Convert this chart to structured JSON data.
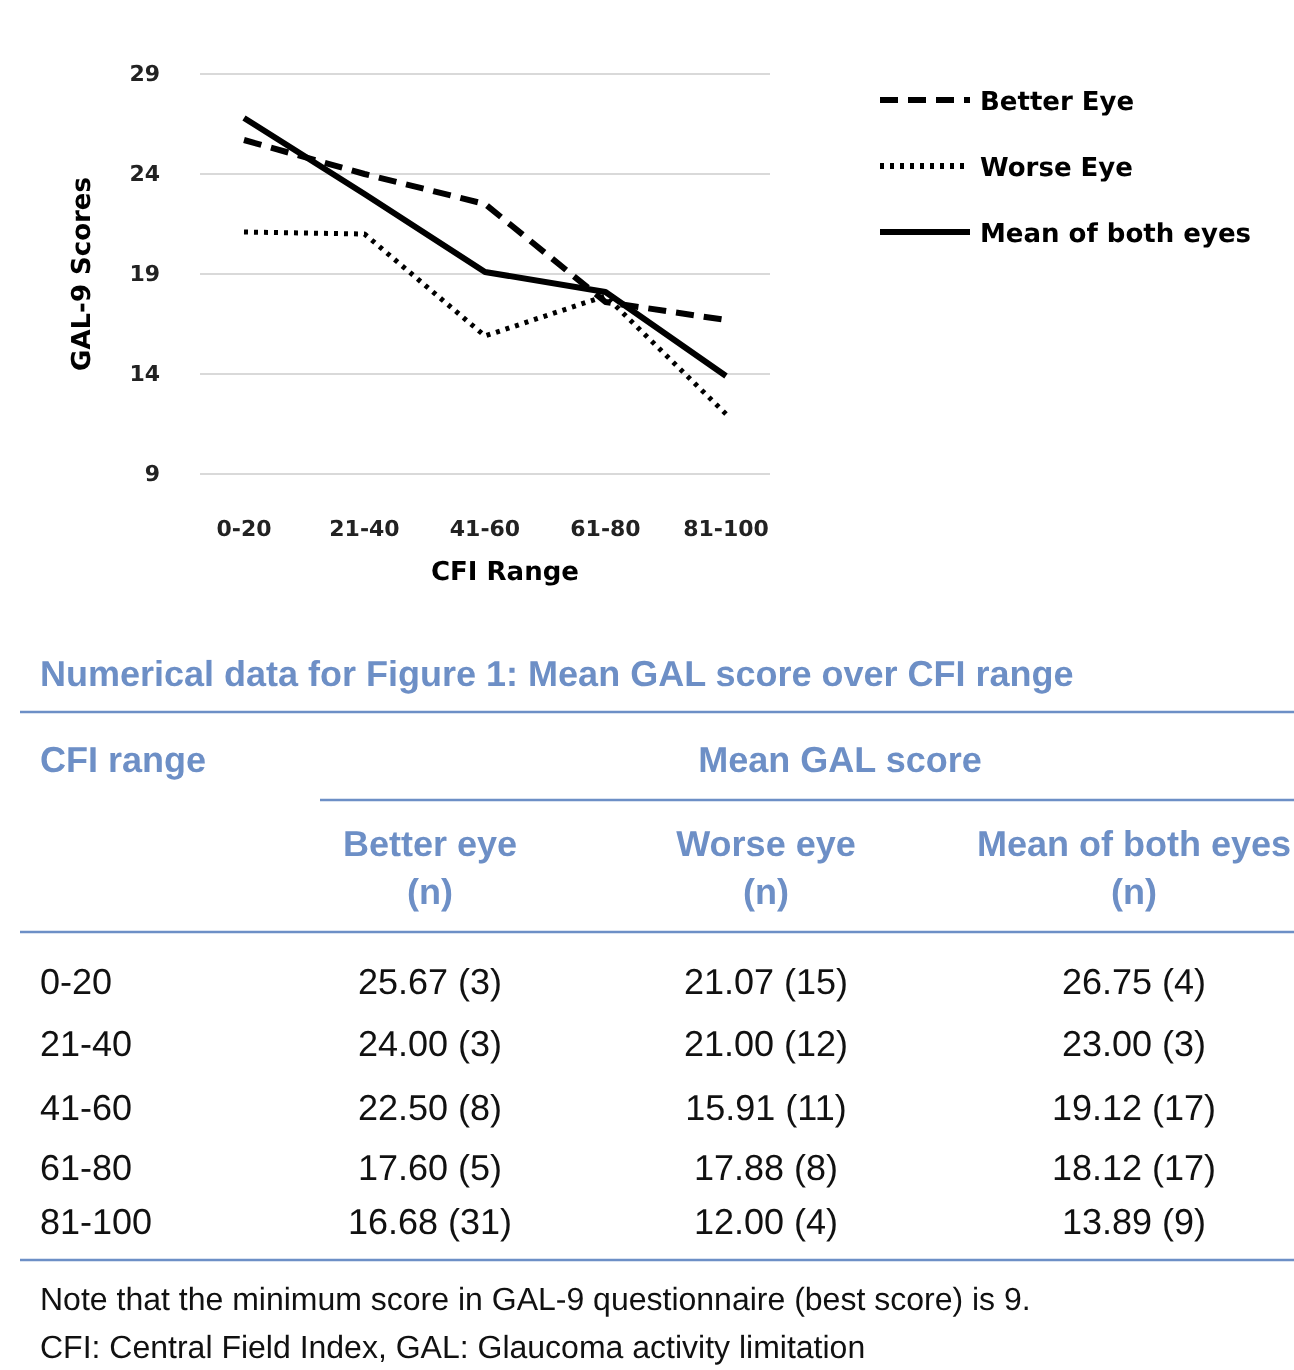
{
  "chart_data": [
    {
      "type": "line",
      "xlabel": "CFI Range",
      "ylabel": "GAL-9 Scores",
      "categories": [
        "0-20",
        "21-40",
        "41-60",
        "61-80",
        "81-100"
      ],
      "ylim": [
        9,
        29
      ],
      "yticks": [
        9,
        14,
        19,
        24,
        29
      ],
      "grid": "y",
      "legend": "right",
      "series": [
        {
          "name": "Better Eye",
          "color": "#000000",
          "line_style": "dashed",
          "values": [
            25.7,
            24.0,
            22.5,
            17.6,
            16.7
          ]
        },
        {
          "name": "Worse Eye",
          "color": "#000000",
          "line_style": "dotted",
          "values": [
            21.1,
            21.0,
            15.9,
            17.9,
            12.0
          ]
        },
        {
          "name": "Mean of both eyes",
          "color": "#000000",
          "line_style": "solid",
          "values": [
            26.8,
            23.0,
            19.1,
            18.1,
            13.9
          ]
        }
      ]
    },
    {
      "type": "other",
      "title": "Numerical data for Figure 1: Mean GAL score over CFI range",
      "annotations": [
        "CFI range",
        "Mean GAL score",
        "Better eye (n)",
        "Worse eye (n)",
        "Mean of both eyes (n)",
        "0-20",
        "25.67 (3)",
        "21.07 (15)",
        "26.75 (4)",
        "21-40",
        "24.00 (3)",
        "21.00 (12)",
        "23.00 (3)",
        "41-60",
        "22.50 (8)",
        "15.91 (11)",
        "19.12 (17)",
        "61-80",
        "17.60 (5)",
        "17.88 (8)",
        "18.12 (17)",
        "81-100",
        "16.68 (31)",
        "12.00 (4)",
        "13.89 (9)",
        "Note that the minimum score in GAL-9 questionnaire (best score) is 9.",
        "CFI: Central Field Index, GAL: Glaucoma activity limitation"
      ]
    }
  ]
}
